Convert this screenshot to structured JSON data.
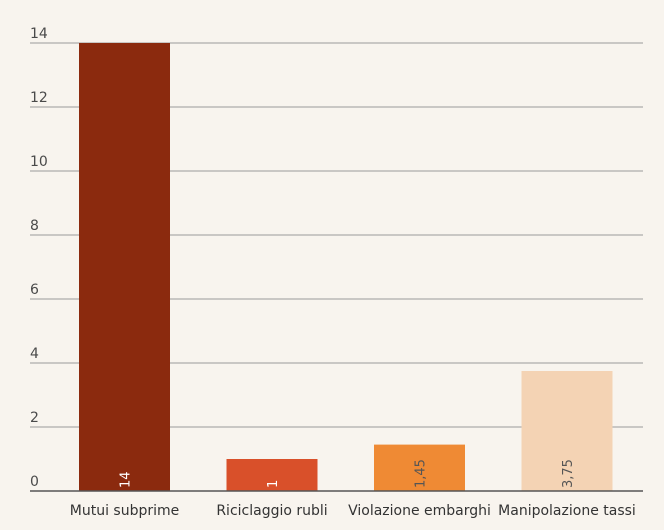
{
  "chart_data": {
    "type": "bar",
    "categories": [
      "Mutui subprime",
      "Riciclaggio rubli",
      "Violazione embarghi",
      "Manipolazione tassi"
    ],
    "values": [
      14,
      1,
      1.45,
      3.75
    ],
    "value_labels": [
      "14",
      "1",
      "1,45",
      "3,75"
    ],
    "colors": [
      "#8b2a0e",
      "#d9502a",
      "#ef8a34",
      "#f4d3b4"
    ],
    "label_colors": [
      "#ffffff",
      "#ffffff",
      "#555555",
      "#555555"
    ],
    "yticks": [
      0,
      2,
      4,
      6,
      8,
      10,
      12,
      14
    ],
    "ylim": [
      0,
      14
    ],
    "grid": true,
    "title": "",
    "xlabel": "",
    "ylabel": ""
  }
}
